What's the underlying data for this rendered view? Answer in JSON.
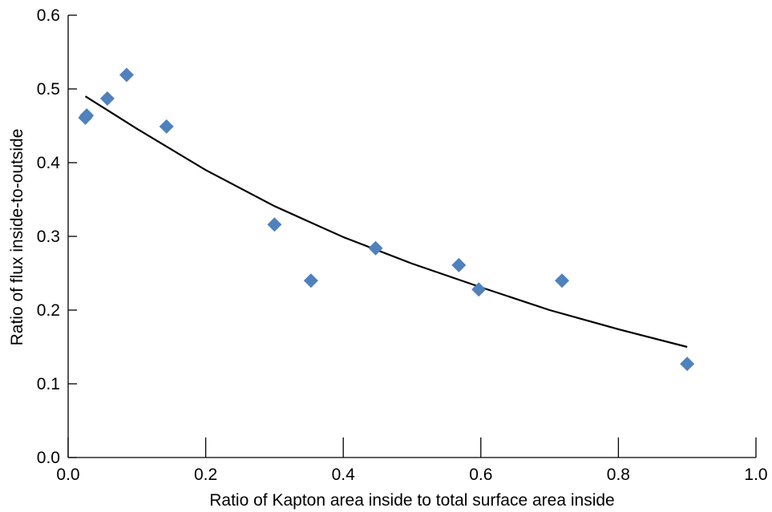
{
  "chart_data": {
    "type": "scatter",
    "title": "",
    "xlabel": "Ratio of Kapton area inside to total surface area inside",
    "ylabel": "Ratio of flux inside-to-outside",
    "xlim": [
      0.0,
      1.0
    ],
    "ylim": [
      0.0,
      0.6
    ],
    "x_ticks": [
      "0.0",
      "0.2",
      "0.4",
      "0.6",
      "0.8",
      "1.0"
    ],
    "y_ticks": [
      "0.0",
      "0.1",
      "0.2",
      "0.3",
      "0.4",
      "0.5",
      "0.6"
    ],
    "grid": false,
    "legend": "none",
    "marker": "diamond",
    "marker_color": "#4f81bd",
    "fit_color": "#000000",
    "series": [
      {
        "values": [
          [
            0.025,
            0.461
          ],
          [
            0.027,
            0.464
          ],
          [
            0.057,
            0.487
          ],
          [
            0.085,
            0.519
          ],
          [
            0.143,
            0.449
          ],
          [
            0.3,
            0.316
          ],
          [
            0.353,
            0.24
          ],
          [
            0.447,
            0.284
          ],
          [
            0.568,
            0.261
          ],
          [
            0.597,
            0.228
          ],
          [
            0.718,
            0.24
          ],
          [
            0.9,
            0.127
          ]
        ]
      }
    ],
    "fit_curve": [
      [
        0.025,
        0.49
      ],
      [
        0.1,
        0.446
      ],
      [
        0.2,
        0.39
      ],
      [
        0.3,
        0.341
      ],
      [
        0.4,
        0.299
      ],
      [
        0.5,
        0.263
      ],
      [
        0.6,
        0.231
      ],
      [
        0.7,
        0.2
      ],
      [
        0.8,
        0.174
      ],
      [
        0.9,
        0.15
      ]
    ]
  }
}
